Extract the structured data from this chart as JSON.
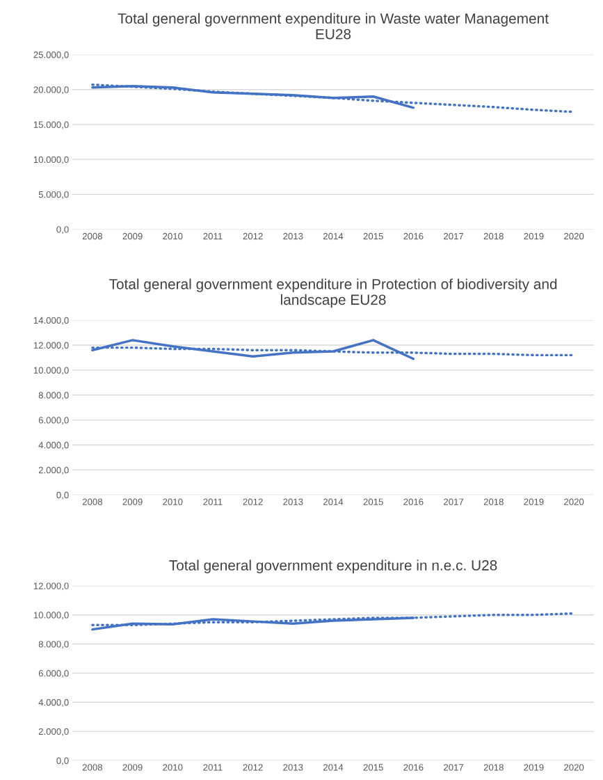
{
  "chart_data": [
    {
      "type": "line",
      "title": "Total general government expenditure in Waste water Management\nEU28",
      "categories": [
        "2008",
        "2009",
        "2010",
        "2011",
        "2012",
        "2013",
        "2014",
        "2015",
        "2016",
        "2017",
        "2018",
        "2019",
        "2020"
      ],
      "ylim": [
        0,
        25000
      ],
      "yticks": [
        {
          "value": 0,
          "label": "0,0"
        },
        {
          "value": 5000,
          "label": "5.000,0"
        },
        {
          "value": 10000,
          "label": "10.000,0"
        },
        {
          "value": 15000,
          "label": "15.000,0"
        },
        {
          "value": 20000,
          "label": "20.000,0"
        },
        {
          "value": 25000,
          "label": "25.000,0"
        }
      ],
      "grid": "y",
      "series": [
        {
          "color": "#4472c4",
          "line_style": "solid",
          "values": [
            20300,
            20500,
            20300,
            19600,
            19400,
            19200,
            18800,
            19000,
            17400,
            null,
            null,
            null,
            null
          ]
        },
        {
          "color": "#4472c4",
          "line_style": "dotted",
          "values": [
            20700,
            20400,
            20100,
            19700,
            19400,
            19100,
            18800,
            18400,
            18100,
            17800,
            17500,
            17100,
            16800
          ]
        }
      ]
    },
    {
      "type": "line",
      "title": "Total general government expenditure in Protection of biodiversity and\nlandscape EU28",
      "categories": [
        "2008",
        "2009",
        "2010",
        "2011",
        "2012",
        "2013",
        "2014",
        "2015",
        "2016",
        "2017",
        "2018",
        "2019",
        "2020"
      ],
      "ylim": [
        0,
        14000
      ],
      "yticks": [
        {
          "value": 0,
          "label": "0,0"
        },
        {
          "value": 2000,
          "label": "2.000,0"
        },
        {
          "value": 4000,
          "label": "4.000,0"
        },
        {
          "value": 6000,
          "label": "6.000,0"
        },
        {
          "value": 8000,
          "label": "8.000,0"
        },
        {
          "value": 10000,
          "label": "10.000,0"
        },
        {
          "value": 12000,
          "label": "12.000,0"
        },
        {
          "value": 14000,
          "label": "14.000,0"
        }
      ],
      "grid": "y",
      "series": [
        {
          "color": "#4472c4",
          "line_style": "solid",
          "values": [
            11600,
            12400,
            11900,
            11500,
            11100,
            11400,
            11500,
            12400,
            10900,
            null,
            null,
            null,
            null
          ]
        },
        {
          "color": "#4472c4",
          "line_style": "dotted",
          "values": [
            11800,
            11800,
            11700,
            11700,
            11600,
            11600,
            11500,
            11400,
            11400,
            11300,
            11300,
            11200,
            11200
          ]
        }
      ]
    },
    {
      "type": "line",
      "title": "Total general government expenditure in n.e.c. U28",
      "categories": [
        "2008",
        "2009",
        "2010",
        "2011",
        "2012",
        "2013",
        "2014",
        "2015",
        "2016",
        "2017",
        "2018",
        "2019",
        "2020"
      ],
      "ylim": [
        0,
        12000
      ],
      "yticks": [
        {
          "value": 0,
          "label": "0,0"
        },
        {
          "value": 2000,
          "label": "2.000,0"
        },
        {
          "value": 4000,
          "label": "4.000,0"
        },
        {
          "value": 6000,
          "label": "6.000,0"
        },
        {
          "value": 8000,
          "label": "8.000,0"
        },
        {
          "value": 10000,
          "label": "10.000,0"
        },
        {
          "value": 12000,
          "label": "12.000,0"
        }
      ],
      "grid": "y",
      "series": [
        {
          "color": "#4472c4",
          "line_style": "solid",
          "values": [
            9000,
            9400,
            9350,
            9700,
            9550,
            9400,
            9600,
            9700,
            9800,
            null,
            null,
            null,
            null
          ]
        },
        {
          "color": "#4472c4",
          "line_style": "dotted",
          "values": [
            9300,
            9300,
            9400,
            9500,
            9500,
            9600,
            9700,
            9800,
            9800,
            9900,
            10000,
            10000,
            10100
          ]
        }
      ]
    }
  ]
}
